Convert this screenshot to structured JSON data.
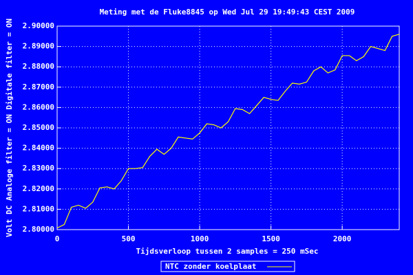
{
  "chart_data": {
    "type": "line",
    "title": "Meting met de Fluke8845 op Wed Jul 29 19:49:43 CEST 2009",
    "x_label": "Tijdsverloop tussen 2 samples = 250 mSec",
    "y_label": "Volt DC    Analoge filter = ON    Digitale filter = ON",
    "x": [
      0,
      50,
      100,
      150,
      200,
      250,
      300,
      350,
      400,
      450,
      500,
      550,
      600,
      650,
      700,
      750,
      800,
      850,
      900,
      950,
      1000,
      1050,
      1100,
      1150,
      1200,
      1250,
      1300,
      1350,
      1400,
      1450,
      1500,
      1550,
      1600,
      1650,
      1700,
      1750,
      1800,
      1850,
      1900,
      1950,
      2000,
      2050,
      2100,
      2150,
      2200,
      2250,
      2300,
      2350,
      2400
    ],
    "series": [
      {
        "name": "NTC zonder koelplaat",
        "color": "#ffff00",
        "values": [
          2.8008,
          2.8025,
          2.811,
          2.812,
          2.8105,
          2.8135,
          2.8205,
          2.821,
          2.82,
          2.824,
          2.83,
          2.83,
          2.8305,
          2.836,
          2.8395,
          2.837,
          2.84,
          2.8455,
          2.845,
          2.8445,
          2.8475,
          2.852,
          2.8515,
          2.85,
          2.853,
          2.8595,
          2.859,
          2.857,
          2.861,
          2.865,
          2.864,
          2.8635,
          2.868,
          2.872,
          2.8715,
          2.8725,
          2.878,
          2.88,
          2.877,
          2.8785,
          2.8855,
          2.8855,
          2.883,
          2.885,
          2.89,
          2.889,
          2.888,
          2.895,
          2.896
        ]
      }
    ],
    "xlim": [
      0,
      2400
    ],
    "xticks": [
      0,
      500,
      1000,
      1500,
      2000
    ],
    "ylim": [
      2.8,
      2.9
    ],
    "yticks": [
      {
        "value": 2.8,
        "label": "2.80000"
      },
      {
        "value": 2.81,
        "label": "2.81000"
      },
      {
        "value": 2.82,
        "label": "2.82000"
      },
      {
        "value": 2.83,
        "label": "2.83000"
      },
      {
        "value": 2.84,
        "label": "2.84000"
      },
      {
        "value": 2.85,
        "label": "2.85000"
      },
      {
        "value": 2.86,
        "label": "2.86000"
      },
      {
        "value": 2.87,
        "label": "2.87000"
      },
      {
        "value": 2.88,
        "label": "2.88000"
      },
      {
        "value": 2.89,
        "label": "2.89000"
      },
      {
        "value": 2.9,
        "label": "2.90000"
      }
    ],
    "grid": true,
    "background": "#0000ff"
  }
}
